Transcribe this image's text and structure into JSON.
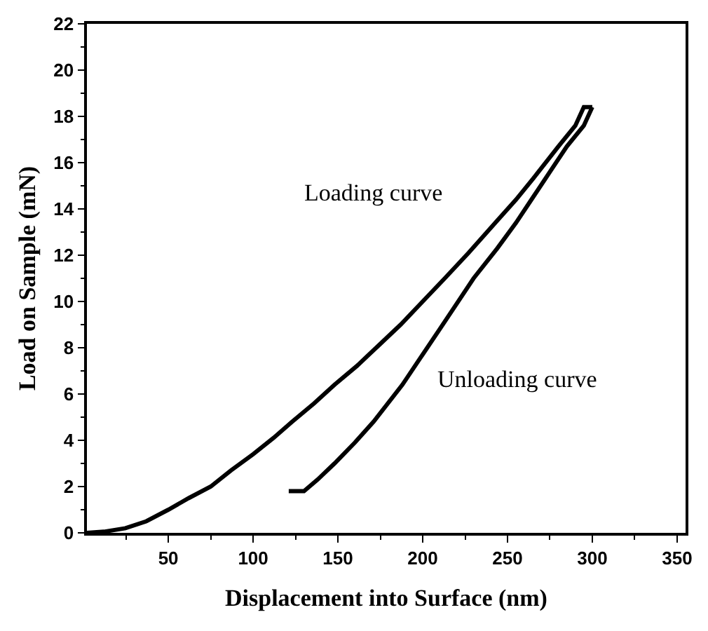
{
  "chart_data": {
    "type": "line",
    "xlabel": "Displacement into Surface (nm)",
    "ylabel": "Load on Sample (mN)",
    "series": [
      {
        "color": "#000000",
        "x": [
          2,
          12,
          24.7,
          37,
          50,
          62,
          75,
          87,
          100,
          112,
          123,
          136,
          148,
          161,
          174,
          187,
          200,
          213,
          227,
          244,
          255,
          265,
          280,
          290,
          295,
          300
        ],
        "values": [
          0,
          0.05,
          0.2,
          0.5,
          1.0,
          1.5,
          2.0,
          2.7,
          3.4,
          4.1,
          4.8,
          5.6,
          6.4,
          7.2,
          8.1,
          9.0,
          10.0,
          11.0,
          12.1,
          13.5,
          14.4,
          15.3,
          16.7,
          17.6,
          18.4,
          18.4
        ]
      },
      {
        "color": "#000000",
        "x": [
          300,
          295,
          285,
          275,
          265,
          255,
          244,
          230,
          220,
          210,
          199,
          188,
          171,
          160,
          148,
          138,
          130,
          121
        ],
        "values": [
          18.4,
          17.6,
          16.7,
          15.6,
          14.5,
          13.4,
          12.3,
          11.0,
          9.9,
          8.8,
          7.6,
          6.4,
          4.8,
          3.9,
          3.0,
          2.3,
          1.8,
          1.8
        ]
      }
    ],
    "annotations": [
      "Loading curve",
      "Unloading curve"
    ],
    "xlim": [
      2,
      355
    ],
    "xticks": [
      50,
      100,
      150,
      200,
      250,
      300,
      350
    ],
    "ylim": [
      0,
      22
    ],
    "yticks": [
      0,
      2,
      4,
      6,
      8,
      10,
      12,
      14,
      16,
      18,
      20,
      22
    ],
    "marker": "none",
    "line_style": "solid"
  }
}
